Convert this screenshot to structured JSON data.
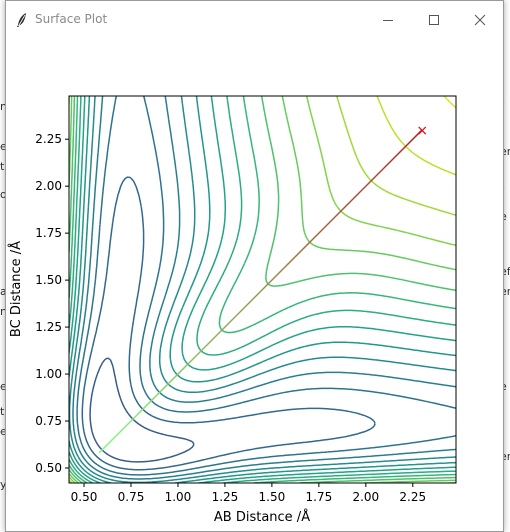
{
  "window": {
    "title": "Surface Plot"
  },
  "background": {
    "left_fragments": [
      "n",
      "er",
      "to",
      "or",
      "a",
      "n",
      "e",
      "t",
      "ev",
      "y"
    ],
    "right_fragments": [
      "f",
      "er",
      "f",
      "e",
      "ef",
      "er",
      "e",
      "er"
    ]
  },
  "chart_data": {
    "type": "contour",
    "xlabel": "AB Distance /Å",
    "ylabel": "BC Distance /Å",
    "xlim": [
      0.42,
      2.48
    ],
    "ylim": [
      0.42,
      2.48
    ],
    "x_ticks": [
      "0.50",
      "0.75",
      "1.00",
      "1.25",
      "1.50",
      "1.75",
      "2.00",
      "2.25"
    ],
    "y_ticks": [
      "0.50",
      "0.75",
      "1.00",
      "1.25",
      "1.50",
      "1.75",
      "2.00",
      "2.25"
    ],
    "colormap": [
      "#440154",
      "#482878",
      "#3e4a89",
      "#31688e",
      "#26828e",
      "#1f9e89",
      "#35b779",
      "#6ece58",
      "#b5de2b",
      "#fde725"
    ],
    "trajectory": {
      "start": {
        "x": 0.58,
        "y": 0.58
      },
      "end": {
        "x": 2.3,
        "y": 2.3
      },
      "start_color": "#7fff80",
      "end_color": "#b22222"
    },
    "end_marker": {
      "symbol": "×",
      "color": "#e8000b",
      "x": 2.3,
      "y": 2.3
    }
  }
}
